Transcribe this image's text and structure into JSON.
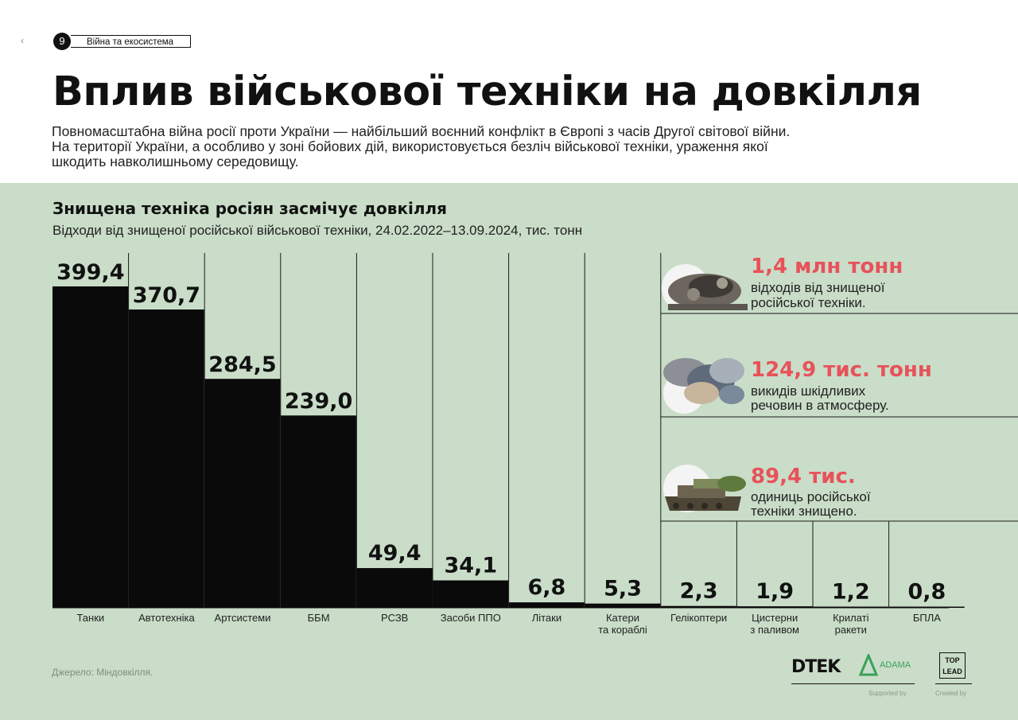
{
  "header": {
    "back_icon": "‹",
    "page_number": "9",
    "section": "Війна та екосистема",
    "title": "Вплив військової техніки на довкілля",
    "intro": [
      "Повномасштабна війна росії проти України — найбільший воєнний конфлікт в Європі з часів Другої світової війни.",
      "На території України, а особливо у зоні бойових дій, використовується безліч військової техніки, ураження якої",
      "шкодить навколишньому середовищу."
    ]
  },
  "chart_data": {
    "type": "bar",
    "title": "Знищена техніка росіян засмічує довкілля",
    "subtitle": "Відходи від знищеної російської військової техніки, 24.02.2022–13.09.2024, тис. тонн",
    "categories": [
      "Танки",
      "Автотехніка",
      "Артсистеми",
      "ББМ",
      "РСЗВ",
      "Засоби ППО",
      "Літаки",
      "Катери\nта кораблі",
      "Гелікоптери",
      "Цистерни\nз паливом",
      "Крилаті\nракети",
      "БПЛА"
    ],
    "values": [
      399.4,
      370.7,
      284.5,
      239.0,
      49.4,
      34.1,
      6.8,
      5.3,
      2.3,
      1.9,
      1.2,
      0.8
    ],
    "value_labels": [
      "399,4",
      "370,7",
      "284,5",
      "239,0",
      "49,4",
      "34,1",
      "6,8",
      "5,3",
      "2,3",
      "1,9",
      "1,2",
      "0,8"
    ],
    "ylim": [
      0,
      400
    ],
    "grid": false,
    "bar_color": "#0a0a0a"
  },
  "stats": [
    {
      "number": "1,4 млн тонн",
      "lines": [
        "відходів від знищеної",
        "російської техніки."
      ],
      "icon": "destroyed-vehicle-image"
    },
    {
      "number": "124,9 тис. тонн",
      "lines": [
        "викидів шкідливих",
        "речовин в атмосферу."
      ],
      "icon": "smoke-image"
    },
    {
      "number": "89,4 тис.",
      "lines": [
        "одиниць російської",
        "техніки знищено."
      ],
      "icon": "tank-image"
    }
  ],
  "footer": {
    "source": "Джерело: Міндовкілля.",
    "logo_dtek": "DTEK",
    "logo_adama": "ADAMA",
    "logo_top": "TOP",
    "logo_lead": "LEAD",
    "supported_by": "Supported by",
    "created_by": "Created by"
  },
  "colors": {
    "panel_bg": "#c9ddc8",
    "accent": "#e8525a",
    "bar": "#0a0a0a"
  }
}
